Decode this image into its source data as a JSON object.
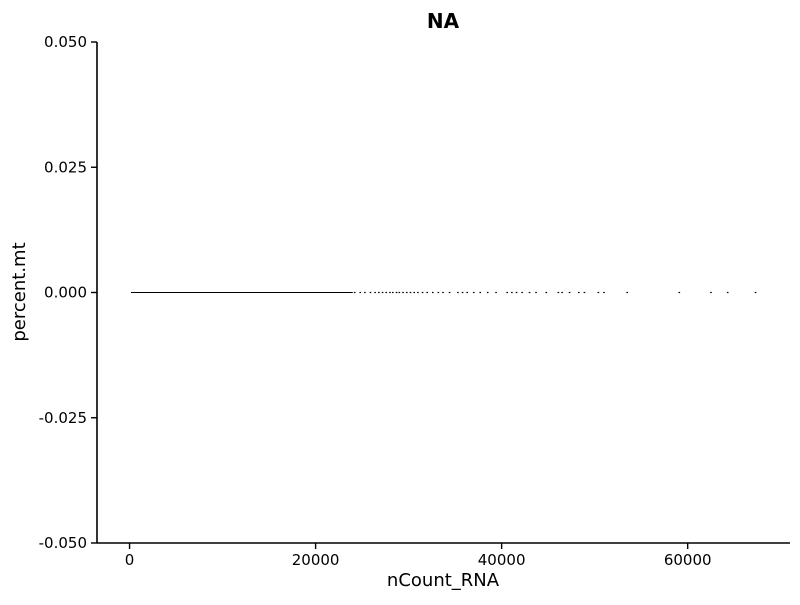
{
  "chart_data": {
    "type": "scatter",
    "title": "NA",
    "xlabel": "nCount_RNA",
    "ylabel": "percent.mt",
    "xlim": [
      -3500,
      71000
    ],
    "ylim": [
      -0.05,
      0.05
    ],
    "x_ticks": [
      0,
      20000,
      40000,
      60000
    ],
    "x_tick_labels": [
      "0",
      "20000",
      "40000",
      "60000"
    ],
    "y_ticks": [
      -0.05,
      -0.025,
      0,
      0.025,
      0.05
    ],
    "y_tick_labels": [
      "-0.050",
      "-0.025",
      "0.000",
      "0.025",
      "0.050"
    ],
    "grid": false,
    "legend": "none",
    "point_color": "#000000",
    "series": [
      {
        "x_range": [
          150,
          24000
        ],
        "y": 0.0,
        "note_values": "dense continuous band of points"
      },
      {
        "x": [
          24200,
          24800,
          25300,
          25900,
          26400,
          26800,
          27200,
          27600,
          28000,
          28300,
          28700,
          29000,
          29400,
          29800,
          30200,
          30600,
          31000,
          31500,
          32000,
          32600,
          33200,
          33700,
          34400,
          35300,
          35800,
          36300,
          37000,
          37700,
          38500,
          39400,
          40600,
          41100,
          41600,
          42200,
          43000,
          43700,
          44800,
          46100,
          46500,
          47300,
          48300,
          48900,
          50400,
          51000,
          53500,
          59100,
          62500,
          64300,
          67300
        ],
        "y": [
          0,
          0,
          0,
          0,
          0,
          0,
          0,
          0,
          0,
          0,
          0,
          0,
          0,
          0,
          0,
          0,
          0,
          0,
          0,
          0,
          0,
          0,
          0,
          0,
          0,
          0,
          0,
          0,
          0,
          0,
          0,
          0,
          0,
          0,
          0,
          0,
          0,
          0,
          0,
          0,
          0,
          0,
          0,
          0,
          0,
          0,
          0,
          0,
          0
        ]
      }
    ]
  }
}
